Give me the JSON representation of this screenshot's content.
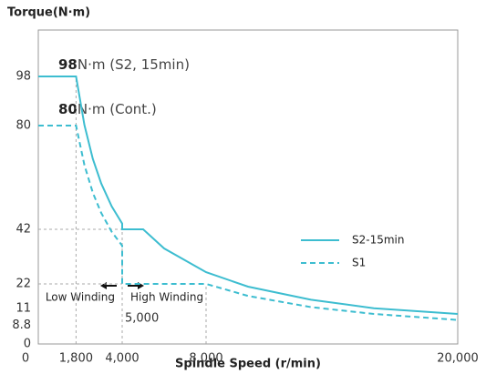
{
  "chart_data": {
    "type": "line",
    "y_label": "Torque(N·m)",
    "x_label": "Spindle Speed (r/min)",
    "xlim": [
      0,
      20000
    ],
    "ylim": [
      0,
      115
    ],
    "xticks": [
      0,
      {
        "value": 1800,
        "label": "1,800"
      },
      {
        "value": 4000,
        "label": "4,000"
      },
      {
        "value": 8000,
        "label": "8,000"
      },
      {
        "value": 20000,
        "label": "20,000"
      }
    ],
    "yticks": [
      0,
      8.8,
      11,
      22,
      42,
      80,
      98
    ],
    "series": [
      {
        "name": "S2-15min",
        "color": "#3dbdd0",
        "style": "solid",
        "x": [
          0,
          1800,
          2200,
          2600,
          3000,
          3500,
          4000,
          4000,
          5000,
          6000,
          8000,
          10000,
          13000,
          16000,
          20000
        ],
        "values": [
          98,
          98,
          80.2,
          67.8,
          58.8,
          50.4,
          44.1,
          42,
          42,
          35,
          26.3,
          21,
          16.2,
          13.1,
          11
        ]
      },
      {
        "name": "S1",
        "color": "#3dbdd0",
        "style": "dashed",
        "x": [
          0,
          1800,
          2200,
          2600,
          3000,
          3500,
          4000,
          4000,
          8000,
          10000,
          13000,
          16000,
          20000
        ],
        "values": [
          80,
          80,
          65.5,
          55.4,
          48,
          41.1,
          36,
          22,
          22,
          17.6,
          13.5,
          11,
          8.8
        ]
      }
    ],
    "annotations": {
      "s2_value": "98",
      "s2_text": "N·m (S2, 15min)",
      "s1_value": "80",
      "s1_text": "N·m (Cont.)",
      "low": "Low Winding",
      "high": "High Winding",
      "switch": "5,000"
    }
  }
}
